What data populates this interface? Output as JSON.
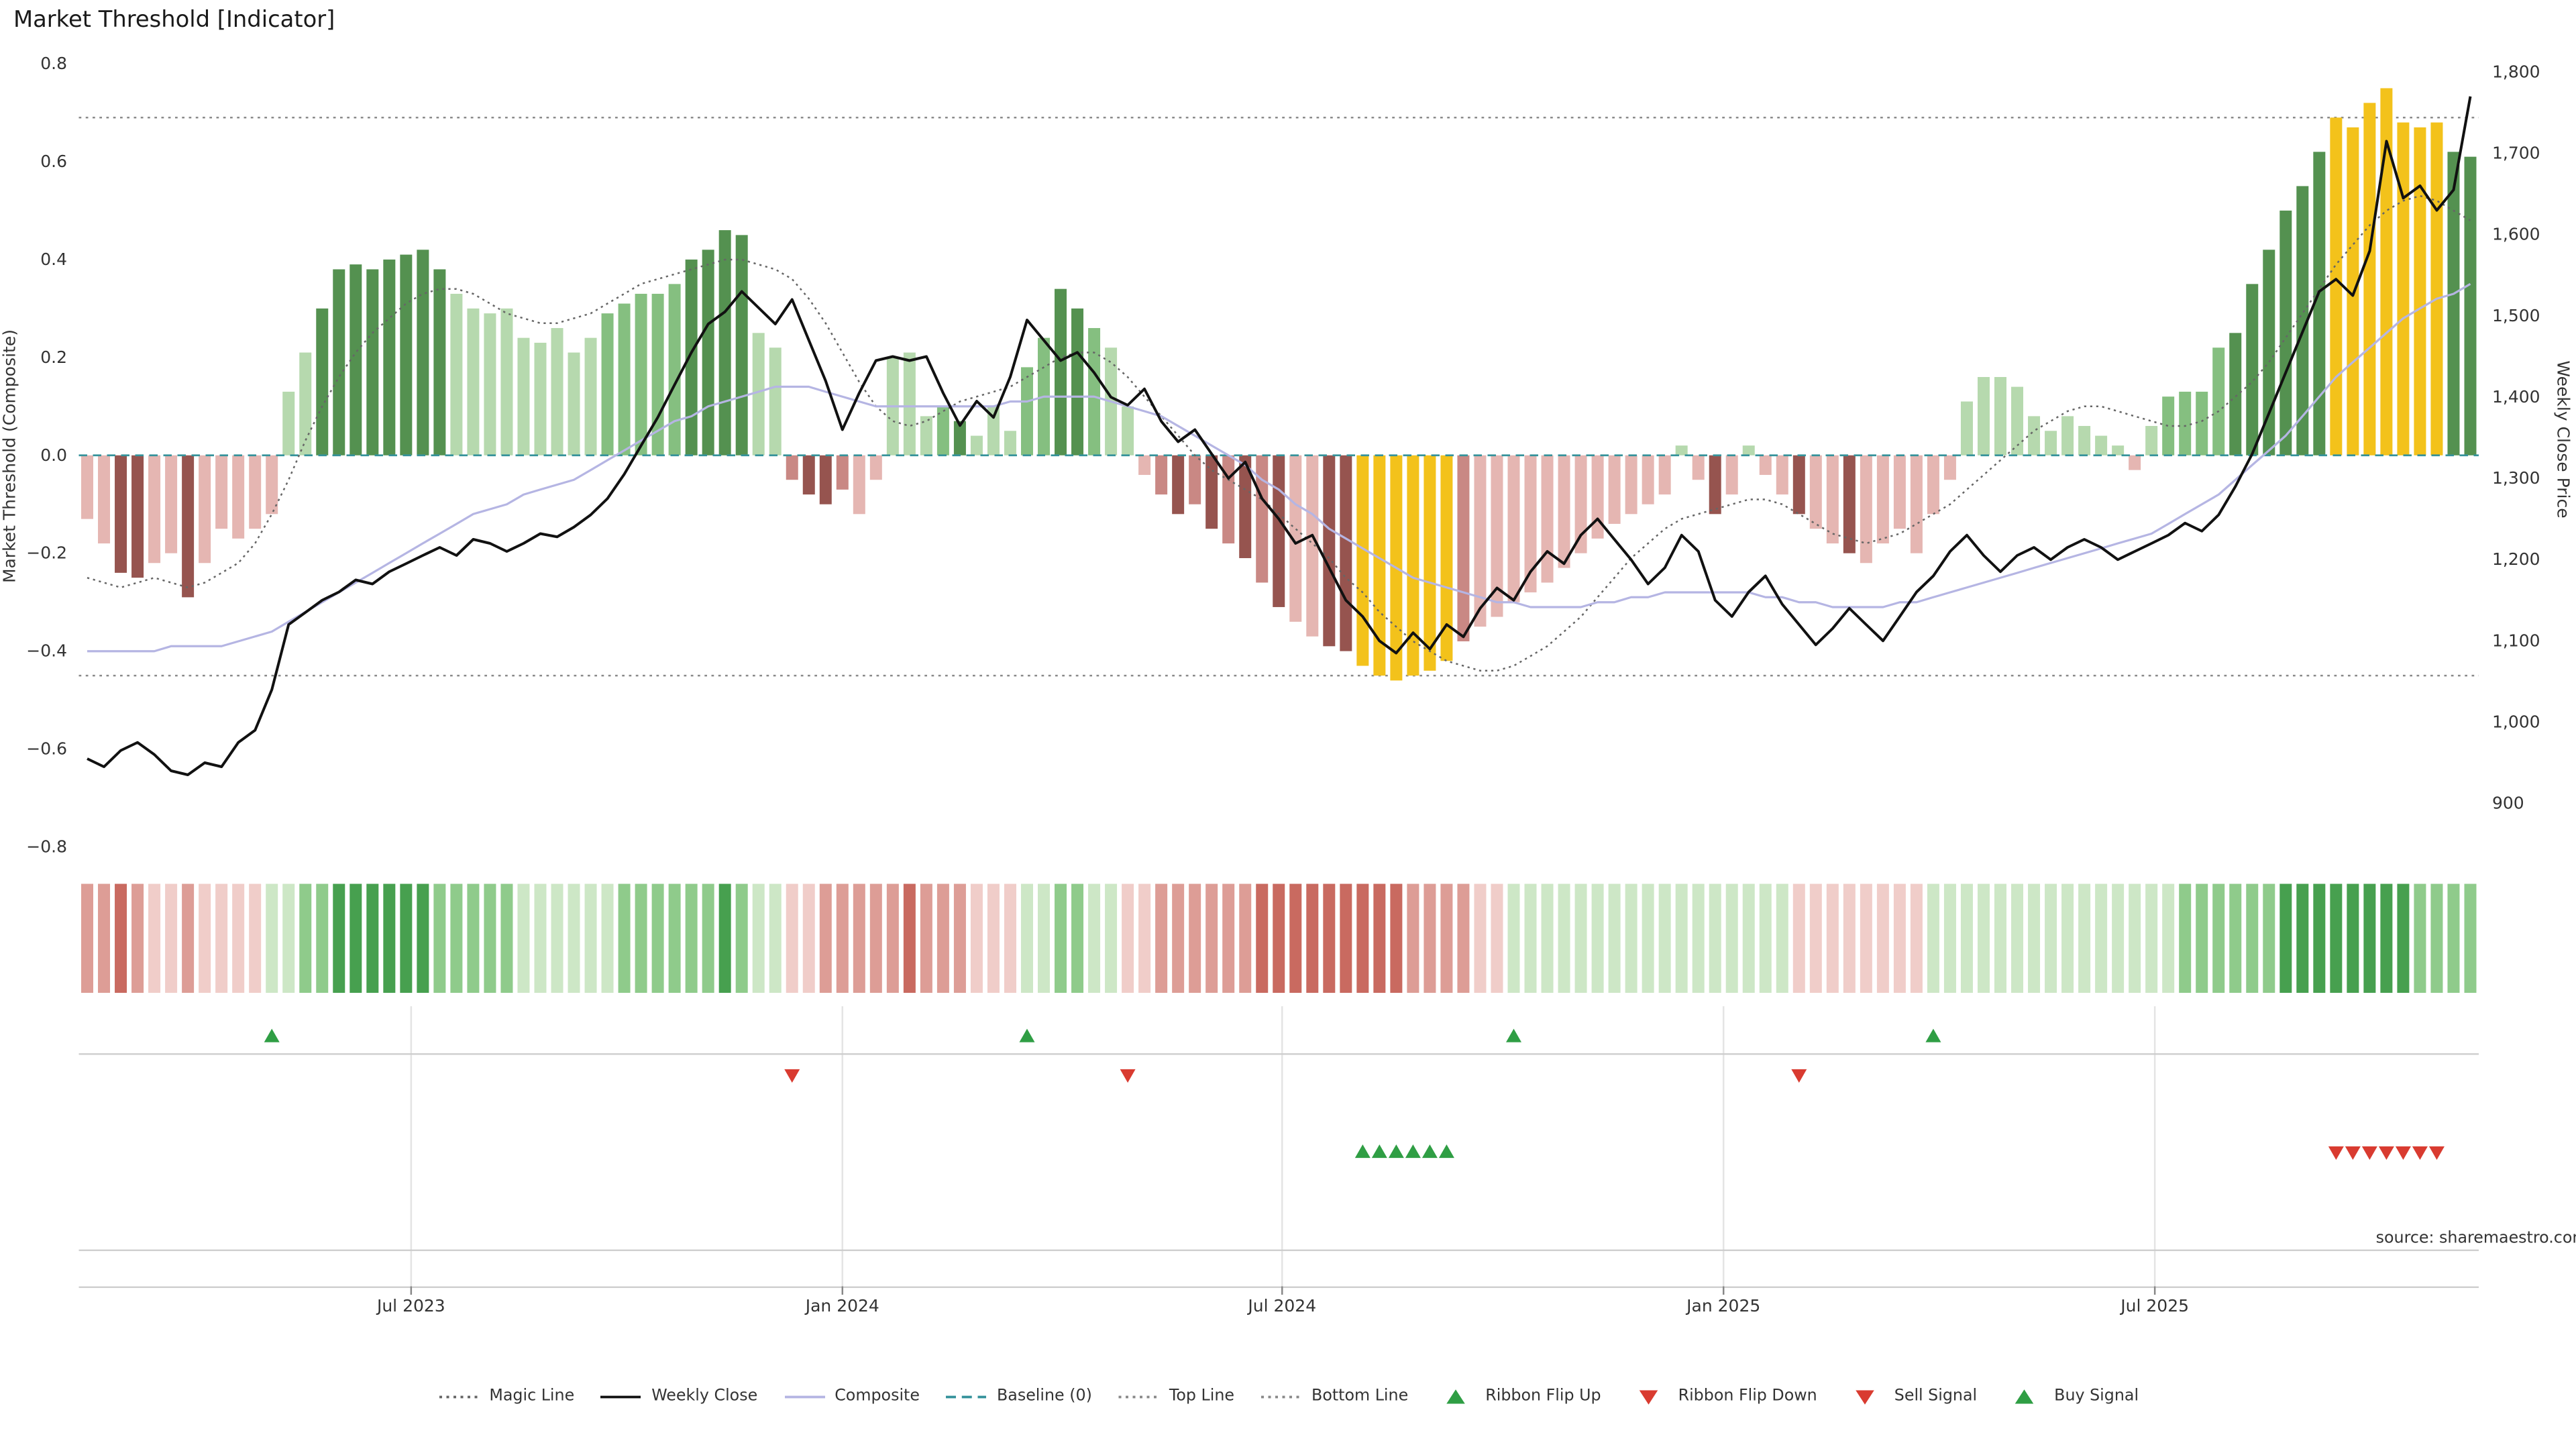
{
  "title": "Market Threshold [Indicator]",
  "source_note": "source: sharemaestro.com",
  "colors": {
    "bars": {
      "lg": "#b6d9ae",
      "mg": "#85bf80",
      "dg": "#549150",
      "lp": "#e5b6b2",
      "mr": "#c98884",
      "dr": "#96544f",
      "au": "#f3c21b"
    },
    "ribbon": {
      "p1": "#cde7c6",
      "p2": "#8fcb8b",
      "p3": "#47a04f",
      "m1": "#f0cdc9",
      "m2": "#dd9d96",
      "m3": "#c96a60"
    },
    "weekly_close": "#111111",
    "composite": "#b5b5e3",
    "magic_line": "#666666",
    "baseline": "#35929b",
    "guide": "#8a8a8a",
    "signal_up": "#2f9e44",
    "signal_down": "#d93b30",
    "grid": "#e4e4e4",
    "panel_line": "#cccccc"
  },
  "legend": {
    "items": [
      {
        "label": "Magic Line",
        "glyph": "dotted",
        "color": "#666666"
      },
      {
        "label": "Weekly Close",
        "glyph": "solid",
        "color": "#111111"
      },
      {
        "label": "Composite",
        "glyph": "solid",
        "color": "#b5b5e3"
      },
      {
        "label": "Baseline (0)",
        "glyph": "dashed",
        "color": "#35929b"
      },
      {
        "label": "Top Line",
        "glyph": "dotted",
        "color": "#8a8a8a"
      },
      {
        "label": "Bottom Line",
        "glyph": "dotted",
        "color": "#8a8a8a"
      },
      {
        "label": "Ribbon Flip Up",
        "glyph": "tri-up",
        "color": "#2f9e44"
      },
      {
        "label": "Ribbon Flip Down",
        "glyph": "tri-down",
        "color": "#d93b30"
      },
      {
        "label": "Sell Signal",
        "glyph": "tri-down",
        "color": "#d93b30"
      },
      {
        "label": "Buy Signal",
        "glyph": "tri-up",
        "color": "#2f9e44"
      }
    ]
  },
  "chart_data": {
    "type": "bar",
    "title": "Market Threshold [Indicator]",
    "baseline": 0,
    "top_line": 0.69,
    "bottom_line": -0.45,
    "x_axis": {
      "tick_labels": [
        "Jul 2023",
        "Jan 2024",
        "Jul 2024",
        "Jan 2025",
        "Jul 2025"
      ],
      "tick_index": [
        19.3,
        45.0,
        71.2,
        97.5,
        123.2
      ]
    },
    "y_left": {
      "label": "Market Threshold (Composite)",
      "range": [
        -0.8,
        0.8
      ],
      "ticks": [
        "0.8",
        "0.6",
        "0.4",
        "0.2",
        "0.0",
        "−0.2",
        "−0.4",
        "−0.6",
        "−0.8"
      ],
      "tick_values": [
        0.8,
        0.6,
        0.4,
        0.2,
        0,
        -0.2,
        -0.4,
        -0.6,
        -0.8
      ]
    },
    "y_right": {
      "label": "Weekly Close Price",
      "range": [
        900,
        1800
      ],
      "ticks": [
        "1,800",
        "1,700",
        "1,600",
        "1,500",
        "1,400",
        "1,300",
        "1,200",
        "1,100",
        "1,000",
        "900"
      ],
      "tick_values": [
        1800,
        1700,
        1600,
        1500,
        1400,
        1300,
        1200,
        1100,
        1000,
        900
      ]
    },
    "series": {
      "threshold_bars": {
        "name": "Market Threshold",
        "axis": "left",
        "values": [
          -0.13,
          -0.18,
          -0.24,
          -0.25,
          -0.22,
          -0.2,
          -0.29,
          -0.22,
          -0.15,
          -0.17,
          -0.15,
          -0.12,
          0.13,
          0.21,
          0.3,
          0.38,
          0.39,
          0.38,
          0.4,
          0.41,
          0.42,
          0.38,
          0.33,
          0.3,
          0.29,
          0.3,
          0.24,
          0.23,
          0.26,
          0.21,
          0.24,
          0.29,
          0.31,
          0.33,
          0.33,
          0.35,
          0.4,
          0.42,
          0.46,
          0.45,
          0.25,
          0.22,
          -0.05,
          -0.08,
          -0.1,
          -0.07,
          -0.12,
          -0.05,
          0.2,
          0.21,
          0.08,
          0.1,
          0.07,
          0.04,
          0.1,
          0.05,
          0.18,
          0.24,
          0.34,
          0.3,
          0.26,
          0.22,
          0.1,
          -0.04,
          -0.08,
          -0.12,
          -0.1,
          -0.15,
          -0.18,
          -0.21,
          -0.26,
          -0.31,
          -0.34,
          -0.37,
          -0.39,
          -0.4,
          -0.43,
          -0.45,
          -0.46,
          -0.45,
          -0.44,
          -0.42,
          -0.38,
          -0.35,
          -0.33,
          -0.3,
          -0.28,
          -0.26,
          -0.23,
          -0.2,
          -0.17,
          -0.14,
          -0.12,
          -0.1,
          -0.08,
          0.02,
          -0.05,
          -0.12,
          -0.08,
          0.02,
          -0.04,
          -0.08,
          -0.12,
          -0.15,
          -0.18,
          -0.2,
          -0.22,
          -0.18,
          -0.15,
          -0.2,
          -0.12,
          -0.05,
          0.11,
          0.16,
          0.16,
          0.14,
          0.08,
          0.05,
          0.08,
          0.06,
          0.04,
          0.02,
          -0.03,
          0.06,
          0.12,
          0.13,
          0.13,
          0.22,
          0.25,
          0.35,
          0.42,
          0.5,
          0.55,
          0.62,
          0.69,
          0.67,
          0.72,
          0.75,
          0.68,
          0.67,
          0.68,
          0.62,
          0.61
        ],
        "colors": [
          "lp",
          "lp",
          "dr",
          "dr",
          "lp",
          "lp",
          "dr",
          "lp",
          "lp",
          "lp",
          "lp",
          "lp",
          "lg",
          "lg",
          "dg",
          "dg",
          "dg",
          "dg",
          "dg",
          "dg",
          "dg",
          "dg",
          "lg",
          "lg",
          "lg",
          "lg",
          "lg",
          "lg",
          "lg",
          "lg",
          "lg",
          "mg",
          "mg",
          "mg",
          "mg",
          "mg",
          "dg",
          "dg",
          "dg",
          "dg",
          "lg",
          "lg",
          "mr",
          "dr",
          "dr",
          "mr",
          "lp",
          "lp",
          "lg",
          "lg",
          "lg",
          "mg",
          "dg",
          "lg",
          "lg",
          "lg",
          "mg",
          "mg",
          "dg",
          "dg",
          "mg",
          "lg",
          "lg",
          "lp",
          "mr",
          "dr",
          "mr",
          "dr",
          "mr",
          "dr",
          "mr",
          "dr",
          "lp",
          "lp",
          "dr",
          "dr",
          "au",
          "au",
          "au",
          "au",
          "au",
          "au",
          "mr",
          "lp",
          "lp",
          "lp",
          "lp",
          "lp",
          "lp",
          "lp",
          "lp",
          "lp",
          "lp",
          "lp",
          "lp",
          "lg",
          "lp",
          "dr",
          "lp",
          "lg",
          "lp",
          "lp",
          "dr",
          "lp",
          "lp",
          "dr",
          "lp",
          "lp",
          "lp",
          "lp",
          "lp",
          "lp",
          "lg",
          "lg",
          "lg",
          "lg",
          "lg",
          "lg",
          "lg",
          "lg",
          "lg",
          "lg",
          "lp",
          "lg",
          "mg",
          "mg",
          "mg",
          "mg",
          "dg",
          "dg",
          "dg",
          "dg",
          "dg",
          "dg",
          "au",
          "au",
          "au",
          "au",
          "au",
          "au",
          "au",
          "dg",
          "dg"
        ]
      },
      "weekly_close": {
        "name": "Weekly Close",
        "axis": "right",
        "values": [
          955,
          945,
          965,
          975,
          960,
          940,
          935,
          950,
          945,
          975,
          990,
          1040,
          1120,
          1135,
          1150,
          1160,
          1175,
          1170,
          1185,
          1195,
          1205,
          1215,
          1205,
          1225,
          1220,
          1210,
          1220,
          1232,
          1228,
          1240,
          1255,
          1275,
          1305,
          1340,
          1375,
          1415,
          1455,
          1490,
          1505,
          1530,
          1510,
          1490,
          1520,
          1470,
          1420,
          1360,
          1405,
          1445,
          1450,
          1445,
          1450,
          1405,
          1365,
          1395,
          1375,
          1425,
          1495,
          1470,
          1445,
          1455,
          1430,
          1400,
          1390,
          1410,
          1370,
          1345,
          1360,
          1330,
          1300,
          1320,
          1275,
          1250,
          1220,
          1230,
          1190,
          1150,
          1130,
          1100,
          1085,
          1110,
          1090,
          1120,
          1105,
          1140,
          1165,
          1150,
          1185,
          1210,
          1195,
          1230,
          1250,
          1225,
          1200,
          1170,
          1190,
          1230,
          1210,
          1150,
          1130,
          1160,
          1180,
          1145,
          1120,
          1095,
          1115,
          1140,
          1120,
          1100,
          1130,
          1160,
          1180,
          1210,
          1230,
          1205,
          1185,
          1205,
          1215,
          1200,
          1215,
          1225,
          1215,
          1200,
          1210,
          1220,
          1230,
          1245,
          1235,
          1255,
          1290,
          1330,
          1380,
          1430,
          1480,
          1530,
          1545,
          1525,
          1580,
          1715,
          1645,
          1660,
          1630,
          1655,
          1770
        ]
      },
      "composite": {
        "name": "Composite",
        "axis": "left",
        "values": [
          -0.4,
          -0.4,
          -0.4,
          -0.4,
          -0.4,
          -0.39,
          -0.39,
          -0.39,
          -0.39,
          -0.38,
          -0.37,
          -0.36,
          -0.34,
          -0.32,
          -0.3,
          -0.28,
          -0.26,
          -0.24,
          -0.22,
          -0.2,
          -0.18,
          -0.16,
          -0.14,
          -0.12,
          -0.11,
          -0.1,
          -0.08,
          -0.07,
          -0.06,
          -0.05,
          -0.03,
          -0.01,
          0.01,
          0.03,
          0.05,
          0.07,
          0.08,
          0.1,
          0.11,
          0.12,
          0.13,
          0.14,
          0.14,
          0.14,
          0.13,
          0.12,
          0.11,
          0.1,
          0.1,
          0.1,
          0.1,
          0.1,
          0.1,
          0.1,
          0.1,
          0.11,
          0.11,
          0.12,
          0.12,
          0.12,
          0.12,
          0.11,
          0.1,
          0.09,
          0.08,
          0.06,
          0.04,
          0.02,
          0.0,
          -0.02,
          -0.05,
          -0.07,
          -0.1,
          -0.12,
          -0.15,
          -0.17,
          -0.19,
          -0.21,
          -0.23,
          -0.25,
          -0.26,
          -0.27,
          -0.28,
          -0.29,
          -0.3,
          -0.3,
          -0.31,
          -0.31,
          -0.31,
          -0.31,
          -0.3,
          -0.3,
          -0.29,
          -0.29,
          -0.28,
          -0.28,
          -0.28,
          -0.28,
          -0.28,
          -0.28,
          -0.29,
          -0.29,
          -0.3,
          -0.3,
          -0.31,
          -0.31,
          -0.31,
          -0.31,
          -0.3,
          -0.3,
          -0.29,
          -0.28,
          -0.27,
          -0.26,
          -0.25,
          -0.24,
          -0.23,
          -0.22,
          -0.21,
          -0.2,
          -0.19,
          -0.18,
          -0.17,
          -0.16,
          -0.14,
          -0.12,
          -0.1,
          -0.08,
          -0.05,
          -0.02,
          0.01,
          0.04,
          0.08,
          0.12,
          0.16,
          0.19,
          0.22,
          0.25,
          0.28,
          0.3,
          0.32,
          0.33,
          0.35
        ]
      },
      "magic_line": {
        "name": "Magic Line",
        "axis": "left",
        "values": [
          -0.25,
          -0.26,
          -0.27,
          -0.26,
          -0.25,
          -0.26,
          -0.27,
          -0.26,
          -0.24,
          -0.22,
          -0.18,
          -0.12,
          -0.05,
          0.03,
          0.1,
          0.16,
          0.21,
          0.25,
          0.28,
          0.31,
          0.33,
          0.34,
          0.34,
          0.33,
          0.31,
          0.29,
          0.28,
          0.27,
          0.27,
          0.28,
          0.29,
          0.31,
          0.33,
          0.35,
          0.36,
          0.37,
          0.38,
          0.39,
          0.4,
          0.4,
          0.39,
          0.38,
          0.36,
          0.32,
          0.27,
          0.21,
          0.15,
          0.1,
          0.07,
          0.06,
          0.07,
          0.09,
          0.11,
          0.12,
          0.13,
          0.14,
          0.16,
          0.18,
          0.2,
          0.21,
          0.21,
          0.19,
          0.16,
          0.12,
          0.08,
          0.04,
          0.0,
          -0.03,
          -0.05,
          -0.07,
          -0.09,
          -0.12,
          -0.15,
          -0.18,
          -0.21,
          -0.25,
          -0.28,
          -0.32,
          -0.35,
          -0.38,
          -0.4,
          -0.42,
          -0.43,
          -0.44,
          -0.44,
          -0.43,
          -0.41,
          -0.39,
          -0.36,
          -0.33,
          -0.29,
          -0.25,
          -0.21,
          -0.18,
          -0.15,
          -0.13,
          -0.12,
          -0.11,
          -0.1,
          -0.09,
          -0.09,
          -0.1,
          -0.12,
          -0.14,
          -0.16,
          -0.17,
          -0.18,
          -0.17,
          -0.16,
          -0.14,
          -0.12,
          -0.1,
          -0.07,
          -0.04,
          -0.01,
          0.02,
          0.05,
          0.07,
          0.09,
          0.1,
          0.1,
          0.09,
          0.08,
          0.07,
          0.06,
          0.06,
          0.07,
          0.09,
          0.12,
          0.15,
          0.19,
          0.24,
          0.29,
          0.34,
          0.39,
          0.43,
          0.47,
          0.5,
          0.52,
          0.53,
          0.52,
          0.5,
          0.48
        ]
      }
    },
    "ribbon": [
      -2,
      -2,
      -3,
      -2,
      -1,
      -1,
      -2,
      -1,
      -1,
      -1,
      -1,
      1,
      1,
      2,
      2,
      3,
      3,
      3,
      3,
      3,
      3,
      2,
      2,
      2,
      2,
      2,
      1,
      1,
      1,
      1,
      1,
      1,
      2,
      2,
      2,
      2,
      2,
      2,
      3,
      2,
      1,
      1,
      -1,
      -1,
      -2,
      -2,
      -2,
      -2,
      -2,
      -3,
      -2,
      -2,
      -2,
      -1,
      -1,
      -1,
      1,
      1,
      2,
      2,
      1,
      1,
      -1,
      -1,
      -2,
      -2,
      -2,
      -2,
      -2,
      -2,
      -3,
      -3,
      -3,
      -3,
      -3,
      -3,
      -3,
      -3,
      -3,
      -2,
      -2,
      -2,
      -2,
      -1,
      -1,
      1,
      1,
      1,
      1,
      1,
      1,
      1,
      1,
      1,
      1,
      1,
      1,
      1,
      1,
      1,
      1,
      1,
      -1,
      -1,
      -1,
      -1,
      -1,
      -1,
      -1,
      -1,
      1,
      1,
      1,
      1,
      1,
      1,
      1,
      1,
      1,
      1,
      1,
      1,
      1,
      1,
      1,
      2,
      2,
      2,
      2,
      2,
      2,
      3,
      3,
      3,
      3,
      3,
      3,
      3,
      3,
      2,
      2,
      2,
      2
    ],
    "signals": {
      "ribbon_flip_up": [
        11,
        56,
        85,
        110
      ],
      "ribbon_flip_down": [
        42,
        62,
        102
      ],
      "buy": [
        76,
        77,
        78,
        79,
        80,
        81
      ],
      "sell": [
        134,
        135,
        136,
        137,
        138,
        139,
        140
      ]
    }
  }
}
